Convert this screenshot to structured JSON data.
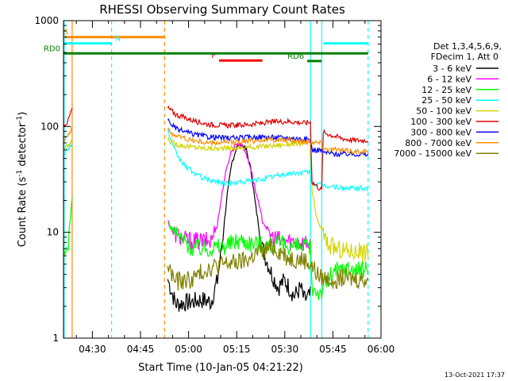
{
  "chart_data": {
    "type": "line",
    "title": "RHESSI Observing Summary Count Rates",
    "xlabel": "Start Time (10-Jan-05 04:21:22)",
    "ylabel_parts": [
      "Count Rate (s",
      "-1",
      " detector",
      "-1",
      ")"
    ],
    "y_scale": "log",
    "ylim": [
      1,
      1000
    ],
    "xlim_minutes_after_0421": [
      0,
      99
    ],
    "y_tick_labels": [
      "1",
      "10",
      "100",
      "1000"
    ],
    "x_tick_labels": [
      "04:30",
      "04:45",
      "05:00",
      "05:15",
      "05:30",
      "05:45",
      "06:00"
    ],
    "x_ticks_minutes_after_0421": [
      9,
      24,
      39,
      54,
      69,
      84,
      99
    ],
    "legend": {
      "placement": "right",
      "header": [
        "Det 1,3,4,5,6,9,",
        "FDecim 1, Att 0"
      ],
      "entries": [
        {
          "label": "3 - 6 keV",
          "color": "#000000"
        },
        {
          "label": "6 - 12 keV",
          "color": "#ff00ff"
        },
        {
          "label": "12 - 25 keV",
          "color": "#00ff00"
        },
        {
          "label": "25 - 50 keV",
          "color": "#00ffff"
        },
        {
          "label": "50 - 100 keV",
          "color": "#d4d400"
        },
        {
          "label": "100 - 300 keV",
          "color": "#e00000"
        },
        {
          "label": "300 - 800 keV",
          "color": "#0000ff"
        },
        {
          "label": "800 - 7000 keV",
          "color": "#ff8c00"
        },
        {
          "label": "7000 - 15000 keV",
          "color": "#808000"
        }
      ]
    },
    "flag_bars": [
      {
        "label": "S",
        "color": "#ff8c00",
        "y": 700,
        "x_start": 0.5,
        "x_end": 31.5
      },
      {
        "label": "N",
        "color": "#00ffff",
        "y": 610,
        "x_start": 0,
        "x_end": 15
      },
      {
        "label": "N",
        "color": "#00ffff",
        "y": 610,
        "x_start": 81,
        "x_end": 95
      },
      {
        "label": "F",
        "color": "#ff0000",
        "y": 420,
        "x_start": 48.5,
        "x_end": 62
      },
      {
        "label": "RD0",
        "color": "#008000",
        "y": 490,
        "x_start": 0,
        "x_end": 95
      },
      {
        "label": "RD6",
        "color": "#008000",
        "y": 415,
        "x_start": 76,
        "x_end": 80.5
      }
    ],
    "vertical_lines": [
      {
        "x": 0.2,
        "color": "#00ffff",
        "style": "solid"
      },
      {
        "x": 2.7,
        "color": "#ff8c00",
        "style": "solid"
      },
      {
        "x": 15,
        "color": "#00ffff",
        "style": "dashed"
      },
      {
        "x": 31.5,
        "color": "#ff8c00",
        "style": "dashed"
      },
      {
        "x": 77,
        "color": "#00ffff",
        "style": "solid"
      },
      {
        "x": 80.5,
        "color": "#00ffff",
        "style": "solid"
      },
      {
        "x": 95,
        "color": "#00ffff",
        "style": "dashed"
      }
    ],
    "series": [
      {
        "name": "3 - 6 keV",
        "color": "#000000",
        "gap": [
          2.7,
          32.5
        ],
        "x": [
          32.5,
          35,
          40,
          43,
          46,
          48,
          49.5,
          51,
          52.5,
          54,
          55.5,
          57,
          58.5,
          60,
          62,
          65,
          67,
          68,
          69,
          72,
          74,
          75,
          77
        ],
        "y": [
          3.6,
          2.1,
          2.2,
          2.3,
          2.2,
          3.5,
          8,
          22,
          45,
          64,
          68,
          60,
          38,
          17,
          7,
          4,
          3,
          3.3,
          3.5,
          2.5,
          3,
          2.3,
          2.5
        ]
      },
      {
        "name": "6 - 12 keV",
        "color": "#ff00ff",
        "gap": [
          2.7,
          32.5
        ],
        "x": [
          32.5,
          34,
          38,
          42,
          46,
          48,
          50,
          52,
          54,
          56,
          58,
          60,
          62,
          65,
          68,
          72,
          75,
          77
        ],
        "y": [
          13,
          10,
          8.5,
          8.2,
          8.3,
          12,
          30,
          55,
          70,
          65,
          45,
          24,
          13,
          9,
          8.3,
          8.2,
          8,
          8
        ]
      },
      {
        "name": "12 - 25 keV",
        "color": "#00ff00",
        "gap": [
          2.7,
          32.5
        ],
        "x": [
          0,
          1.5,
          2.7,
          32.5,
          36,
          40,
          45,
          50,
          55,
          60,
          65,
          70,
          75,
          77,
          77.5,
          80,
          84,
          88,
          91,
          95
        ],
        "y": [
          5.2,
          8,
          22,
          12,
          9,
          7.2,
          7.1,
          7.4,
          8.5,
          7.8,
          7.6,
          7.6,
          7.2,
          7,
          3,
          2.7,
          4.2,
          4.6,
          4.4,
          4.5
        ]
      },
      {
        "name": "25 - 50 keV",
        "color": "#00ffff",
        "gap": [
          2.7,
          32.5
        ],
        "x": [
          0,
          1.5,
          2.7,
          32.5,
          34,
          36,
          38,
          41,
          44,
          48,
          52,
          56,
          60,
          64,
          68,
          72,
          76,
          77,
          77.5,
          80,
          84,
          88,
          91,
          95
        ],
        "y": [
          55,
          62,
          70,
          95,
          65,
          50,
          42,
          36,
          32,
          30,
          29,
          30,
          31,
          33,
          35,
          36,
          37,
          37,
          29,
          28,
          27,
          26,
          26,
          26
        ]
      },
      {
        "name": "50 - 100 keV",
        "color": "#d4d400",
        "gap": [
          2.7,
          32.5
        ],
        "x": [
          0,
          1.5,
          2.7,
          32.5,
          35,
          40,
          45,
          50,
          55,
          60,
          65,
          70,
          75,
          77,
          77.5,
          79,
          80.5,
          82,
          85,
          88,
          91,
          95
        ],
        "y": [
          60,
          66,
          72,
          75,
          68,
          64,
          62,
          62,
          63,
          64,
          66,
          68,
          70,
          70,
          25,
          13,
          11,
          8,
          7,
          6.8,
          6.6,
          6.5
        ]
      },
      {
        "name": "100 - 300 keV",
        "color": "#e00000",
        "gap": [
          2.7,
          32.5
        ],
        "x": [
          0,
          1.5,
          2.7,
          32.5,
          35,
          40,
          45,
          50,
          55,
          60,
          65,
          70,
          75,
          77,
          77.5,
          80.5,
          81,
          85,
          88,
          91,
          95
        ],
        "y": [
          100,
          115,
          148,
          150,
          130,
          115,
          105,
          102,
          103,
          106,
          110,
          112,
          108,
          110,
          30,
          25,
          88,
          80,
          76,
          74,
          74
        ]
      },
      {
        "name": "300 - 800 keV",
        "color": "#0000ff",
        "gap": [
          2.7,
          32.5
        ],
        "x": [
          32.5,
          35,
          40,
          45,
          50,
          55,
          60,
          65,
          70,
          75,
          77,
          77.5,
          80.5,
          81,
          85,
          88,
          91,
          95
        ],
        "y": [
          115,
          95,
          85,
          80,
          78,
          78,
          80,
          79,
          78,
          76,
          75,
          60,
          60,
          57,
          55,
          55,
          55,
          54
        ]
      },
      {
        "name": "800 - 7000 keV",
        "color": "#ff8c00",
        "gap": [
          2.7,
          32.5
        ],
        "x": [
          0,
          1.5,
          2.7,
          32.5,
          35,
          40,
          45,
          50,
          55,
          60,
          65,
          70,
          75,
          77,
          80.5,
          81,
          85,
          88,
          91,
          95
        ],
        "y": [
          75,
          85,
          95,
          92,
          82,
          74,
          70,
          70,
          72,
          74,
          75,
          74,
          72,
          72,
          70,
          62,
          60,
          59,
          58,
          58
        ]
      },
      {
        "name": "7000 - 15000 keV",
        "color": "#808000",
        "gap": [
          2.7,
          32.5
        ],
        "x": [
          32.5,
          35,
          40,
          45,
          50,
          55,
          58,
          60,
          63,
          65,
          68,
          70,
          72,
          75,
          77,
          80,
          84,
          88,
          91,
          95
        ],
        "y": [
          4.8,
          3.4,
          3.6,
          4.6,
          5,
          5.2,
          5.6,
          6.3,
          6.8,
          7.2,
          6.5,
          5.8,
          5.6,
          5.5,
          5,
          3.7,
          3.6,
          3.7,
          3.6,
          3.6
        ]
      }
    ]
  },
  "footer": {
    "datestamp": "13-Oct-2021 17:37"
  }
}
